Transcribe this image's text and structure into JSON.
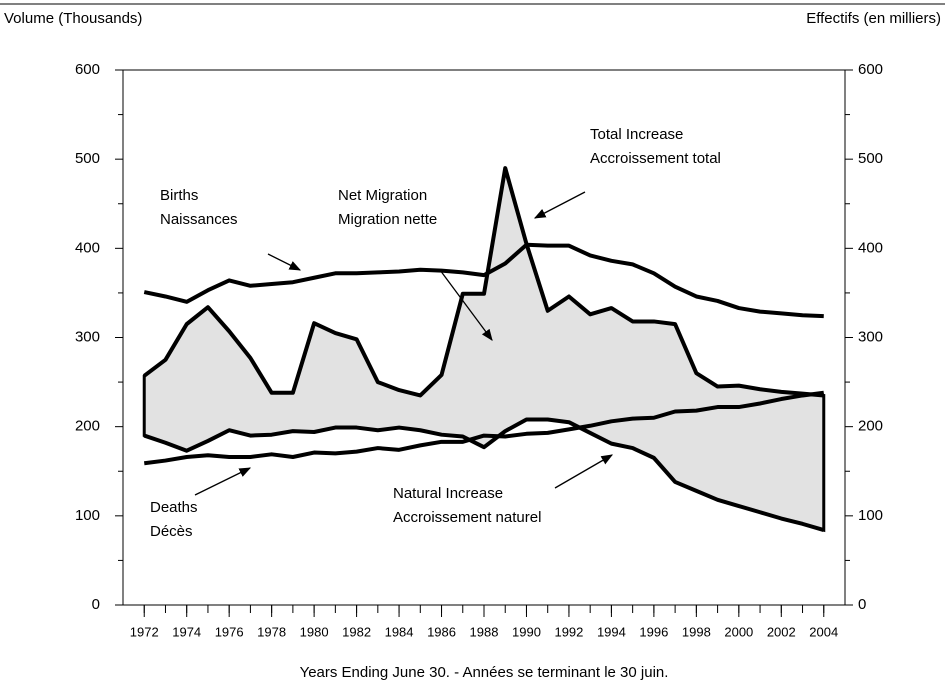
{
  "chart_data": {
    "type": "line",
    "y_label_left": "Volume (Thousands)",
    "y_label_right": "Effectifs (en milliers)",
    "x_label": "Years Ending June 30. - Années se terminant le 30 juin.",
    "x": [
      1972,
      1973,
      1974,
      1975,
      1976,
      1977,
      1978,
      1979,
      1980,
      1981,
      1982,
      1983,
      1984,
      1985,
      1986,
      1987,
      1988,
      1989,
      1990,
      1991,
      1992,
      1993,
      1994,
      1995,
      1996,
      1997,
      1998,
      1999,
      2000,
      2001,
      2002,
      2003,
      2004
    ],
    "xlim": [
      1971,
      2005
    ],
    "xticks": [
      1972,
      1974,
      1976,
      1978,
      1980,
      1982,
      1984,
      1986,
      1988,
      1990,
      1992,
      1994,
      1996,
      1998,
      2000,
      2002,
      2004
    ],
    "ylim": [
      0,
      600
    ],
    "yticks": [
      0,
      100,
      200,
      300,
      400,
      500,
      600
    ],
    "y2lim": [
      0,
      600
    ],
    "y2ticks": [
      0,
      100,
      200,
      300,
      400,
      500,
      600
    ],
    "shade_color": "#e2e2e2",
    "series": [
      {
        "name": "Births",
        "color": "#000000",
        "values": [
          351,
          346,
          340,
          353,
          364,
          358,
          360,
          362,
          367,
          372,
          372,
          373,
          374,
          376,
          375,
          373,
          370,
          383,
          404,
          403,
          403,
          392,
          386,
          382,
          372,
          357,
          346,
          341,
          333,
          329,
          327,
          325,
          324
        ]
      },
      {
        "name": "Deaths",
        "color": "#000000",
        "values": [
          159,
          162,
          166,
          168,
          166,
          166,
          169,
          166,
          171,
          170,
          172,
          176,
          174,
          179,
          183,
          183,
          190,
          189,
          192,
          193,
          197,
          201,
          206,
          209,
          210,
          217,
          218,
          222,
          222,
          226,
          231,
          235,
          238
        ]
      },
      {
        "name": "Natural Increase",
        "color": "#000000",
        "values": [
          190,
          182,
          173,
          184,
          196,
          190,
          191,
          195,
          194,
          199,
          199,
          196,
          199,
          196,
          191,
          189,
          177,
          195,
          208,
          208,
          205,
          193,
          181,
          176,
          165,
          138,
          128,
          118,
          111,
          104,
          97,
          91,
          84
        ]
      },
      {
        "name": "Total Increase",
        "color": "#000000",
        "values": [
          257,
          275,
          315,
          334,
          307,
          277,
          238,
          238,
          316,
          305,
          298,
          250,
          241,
          235,
          258,
          349,
          349,
          490,
          405,
          330,
          346,
          326,
          333,
          318,
          318,
          315,
          260,
          245,
          246,
          242,
          239,
          237,
          235
        ]
      }
    ],
    "annotations": [
      {
        "lines": [
          "Births",
          "Naissances"
        ]
      },
      {
        "lines": [
          "Deaths",
          "Décès"
        ]
      },
      {
        "lines": [
          "Net Migration",
          "Migration nette"
        ]
      },
      {
        "lines": [
          "Total Increase",
          "Accroissement total"
        ]
      },
      {
        "lines": [
          "Natural Increase",
          "Accroissement naturel"
        ]
      }
    ]
  }
}
